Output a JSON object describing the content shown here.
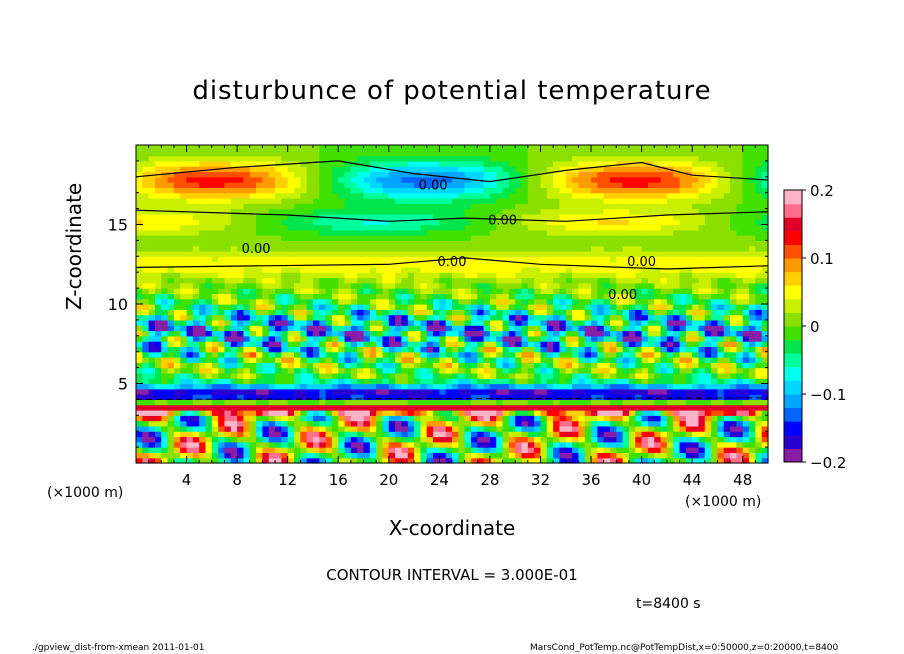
{
  "chart_data": {
    "type": "heatmap",
    "title": "disturbunce of potential temperature",
    "xlabel": "X-coordinate",
    "ylabel": "Z-coordinate",
    "x_unit_label": "(×1000 m)",
    "y_unit_label": "(×1000 m)",
    "xlim": [
      0,
      50
    ],
    "ylim": [
      0,
      20
    ],
    "x_ticks": [
      4,
      8,
      12,
      16,
      20,
      24,
      28,
      32,
      36,
      40,
      44,
      48
    ],
    "y_ticks": [
      5,
      10,
      15
    ],
    "colorbar": {
      "range": [
        -0.2,
        0.2
      ],
      "ticks": [
        0.2,
        0.1,
        0,
        -0.1,
        -0.2
      ],
      "tick_labels": [
        "0.2",
        "0.1",
        "0",
        "−0.1",
        "−0.2"
      ],
      "colors": [
        "#8a1ea6",
        "#2a00d2",
        "#0000ff",
        "#0064ff",
        "#00a6ff",
        "#00d7ff",
        "#00ffee",
        "#00ff9c",
        "#00e64c",
        "#40e000",
        "#8be000",
        "#c8f000",
        "#ffff00",
        "#ffd000",
        "#ff9a00",
        "#ff5000",
        "#ff0000",
        "#e0002a",
        "#ff6e8c",
        "#ffb4c8"
      ]
    },
    "contour_labels": [
      "0.00",
      "0.00",
      "0.00",
      "0.00",
      "0.00",
      "0.00"
    ],
    "contour_interval_text": "CONTOUR INTERVAL = 3.000E-01",
    "time_text": "t=8400 s"
  },
  "footer": {
    "left": "./gpview_dist-from-xmean  2011-01-01",
    "right": "MarsCond_PotTemp.nc@PotTempDist,x=0:50000,z=0:20000,t=8400"
  }
}
